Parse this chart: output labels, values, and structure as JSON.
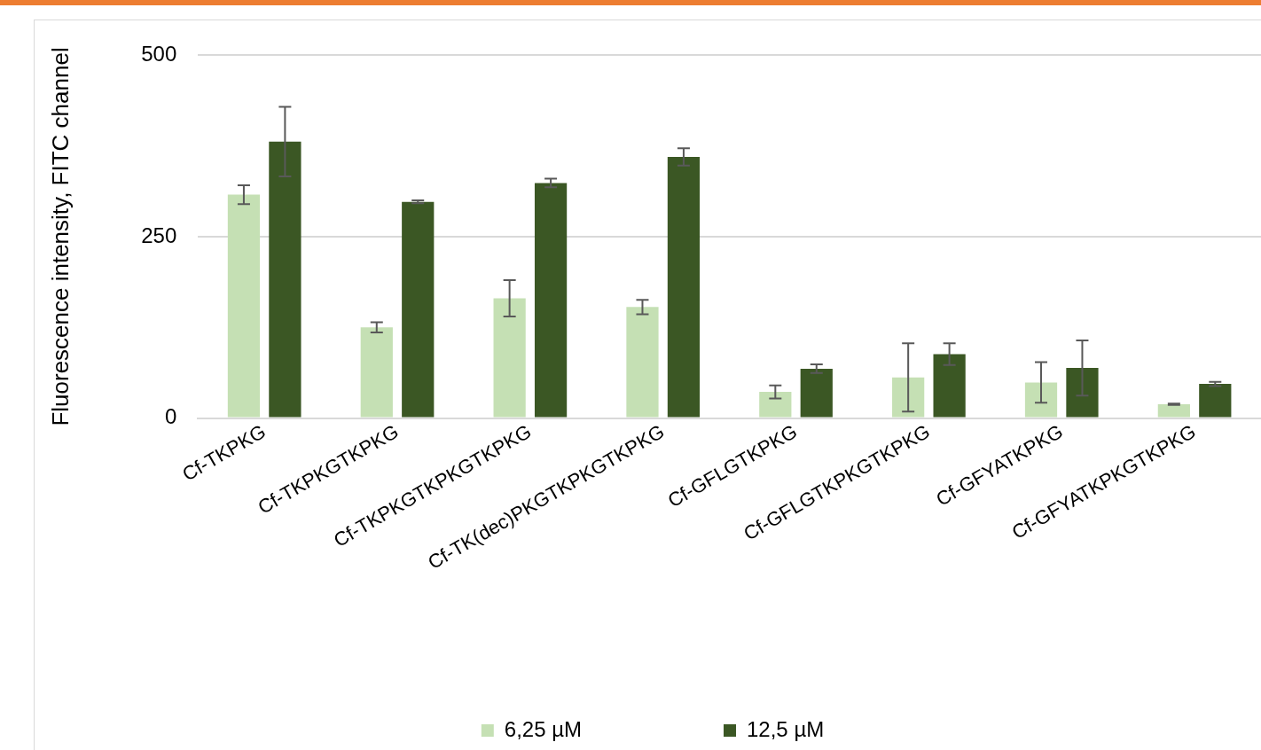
{
  "chart_data": {
    "type": "bar",
    "ylabel": "Fluorescence intensity, FITC channel",
    "categories": [
      "Cf-TKPKG",
      "Cf-TKPKGTKPKG",
      "Cf-TKPKGTKPKGTKPKG",
      "Cf-TK(dec)PKGTKPKGTKPKG",
      "Cf-GFLGTKPKG",
      "Cf-GFLGTKPKGTKPKG",
      "Cf-GFYATKPKG",
      "Cf-GFYATKPKGTKPKG"
    ],
    "series": [
      {
        "name": "6,25 µM",
        "color": "#c5e0b4",
        "values": [
          308,
          125,
          165,
          153,
          36,
          56,
          49,
          19
        ],
        "errors": [
          13,
          7,
          25,
          10,
          9,
          47,
          28,
          1
        ]
      },
      {
        "name": "12,5 µM",
        "color": "#3b5724",
        "values": [
          381,
          298,
          324,
          360,
          68,
          88,
          69,
          47
        ],
        "errors": [
          48,
          2,
          6,
          12,
          6,
          15,
          38,
          3
        ]
      }
    ],
    "ylim": [
      0,
      500
    ],
    "yticks": [
      0,
      250,
      500
    ],
    "grid": "y",
    "legend": "bottom"
  }
}
